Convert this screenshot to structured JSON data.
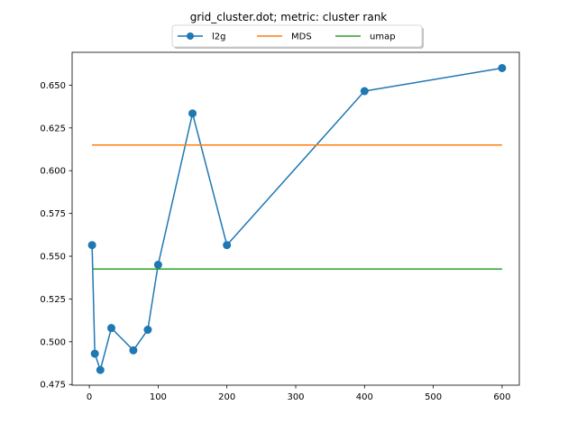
{
  "chart_data": {
    "type": "line",
    "title": "grid_cluster.dot; metric: cluster rank",
    "xlabel": "",
    "ylabel": "",
    "xlim": [
      -25,
      625
    ],
    "ylim": [
      0.4746,
      0.6692
    ],
    "xticks": [
      0,
      100,
      200,
      300,
      400,
      500,
      600
    ],
    "yticks": [
      0.475,
      0.5,
      0.525,
      0.55,
      0.575,
      0.6,
      0.625,
      0.65
    ],
    "ytick_labels": [
      "0.475",
      "0.500",
      "0.525",
      "0.550",
      "0.575",
      "0.600",
      "0.625",
      "0.650"
    ],
    "grid": false,
    "legend": "top-center",
    "series": [
      {
        "name": "l2g",
        "color": "#1f77b4",
        "marker": "circle",
        "x": [
          4,
          8,
          16,
          32,
          64,
          85,
          100,
          150,
          200,
          400,
          600
        ],
        "y": [
          0.5565,
          0.493,
          0.4835,
          0.508,
          0.495,
          0.507,
          0.545,
          0.6335,
          0.5565,
          0.6465,
          0.66
        ]
      },
      {
        "name": "MDS",
        "color": "#ff7f0e",
        "marker": "none",
        "x": [
          4,
          600
        ],
        "y": [
          0.615,
          0.615
        ]
      },
      {
        "name": "umap",
        "color": "#2ca02c",
        "marker": "none",
        "x": [
          4,
          600
        ],
        "y": [
          0.5425,
          0.5425
        ]
      }
    ]
  }
}
